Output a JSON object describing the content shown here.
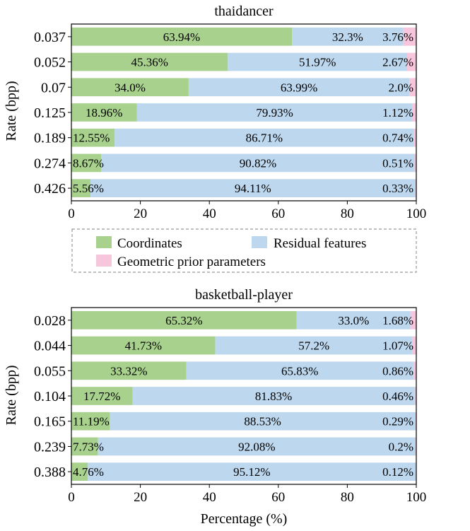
{
  "chart_data": [
    {
      "type": "bar",
      "orientation": "horizontal",
      "stacked": true,
      "title": "thaidancer",
      "ylabel": "Rate (bpp)",
      "xlabel": "",
      "xlim": [
        0,
        100
      ],
      "xticks": [
        "0",
        "20",
        "40",
        "60",
        "80",
        "100"
      ],
      "categories": [
        "0.037",
        "0.052",
        "0.07",
        "0.125",
        "0.189",
        "0.274",
        "0.426"
      ],
      "series": [
        {
          "name": "Coordinates",
          "color": "#a9d18e",
          "values": [
            63.94,
            45.36,
            34.0,
            18.96,
            12.55,
            8.67,
            5.56
          ],
          "labels": [
            "63.94%",
            "45.36%",
            "34.0%",
            "18.96%",
            "12.55%",
            "8.67%",
            "5.56%"
          ]
        },
        {
          "name": "Residual features",
          "color": "#bdd7ee",
          "values": [
            32.3,
            51.97,
            63.99,
            79.93,
            86.71,
            90.82,
            94.11
          ],
          "labels": [
            "32.3%",
            "51.97%",
            "63.99%",
            "79.93%",
            "86.71%",
            "90.82%",
            "94.11%"
          ]
        },
        {
          "name": "Geometric prior parameters",
          "color": "#f8c6dc",
          "values": [
            3.76,
            2.67,
            2.0,
            1.12,
            0.74,
            0.51,
            0.33
          ],
          "labels": [
            "3.76%",
            "2.67%",
            "2.0%",
            "1.12%",
            "0.74%",
            "0.51%",
            "0.33%"
          ]
        }
      ]
    },
    {
      "type": "bar",
      "orientation": "horizontal",
      "stacked": true,
      "title": "basketball-player",
      "ylabel": "Rate (bpp)",
      "xlabel": "Percentage (%)",
      "xlim": [
        0,
        100
      ],
      "xticks": [
        "0",
        "20",
        "40",
        "60",
        "80",
        "100"
      ],
      "categories": [
        "0.028",
        "0.044",
        "0.055",
        "0.104",
        "0.165",
        "0.239",
        "0.388"
      ],
      "series": [
        {
          "name": "Coordinates",
          "color": "#a9d18e",
          "values": [
            65.32,
            41.73,
            33.32,
            17.72,
            11.19,
            7.73,
            4.76
          ],
          "labels": [
            "65.32%",
            "41.73%",
            "33.32%",
            "17.72%",
            "11.19%",
            "7.73%",
            "4.76%"
          ]
        },
        {
          "name": "Residual features",
          "color": "#bdd7ee",
          "values": [
            33.0,
            57.2,
            65.83,
            81.83,
            88.53,
            92.08,
            95.12
          ],
          "labels": [
            "33.0%",
            "57.2%",
            "65.83%",
            "81.83%",
            "88.53%",
            "92.08%",
            "95.12%"
          ]
        },
        {
          "name": "Geometric prior parameters",
          "color": "#f8c6dc",
          "values": [
            1.68,
            1.07,
            0.86,
            0.46,
            0.29,
            0.2,
            0.12
          ],
          "labels": [
            "1.68%",
            "1.07%",
            "0.86%",
            "0.46%",
            "0.29%",
            "0.2%",
            "0.12%"
          ]
        }
      ]
    }
  ],
  "legend": {
    "items": [
      {
        "label": "Coordinates",
        "color": "#a9d18e"
      },
      {
        "label": "Residual features",
        "color": "#bdd7ee"
      },
      {
        "label": "Geometric prior parameters",
        "color": "#f8c6dc"
      }
    ]
  }
}
